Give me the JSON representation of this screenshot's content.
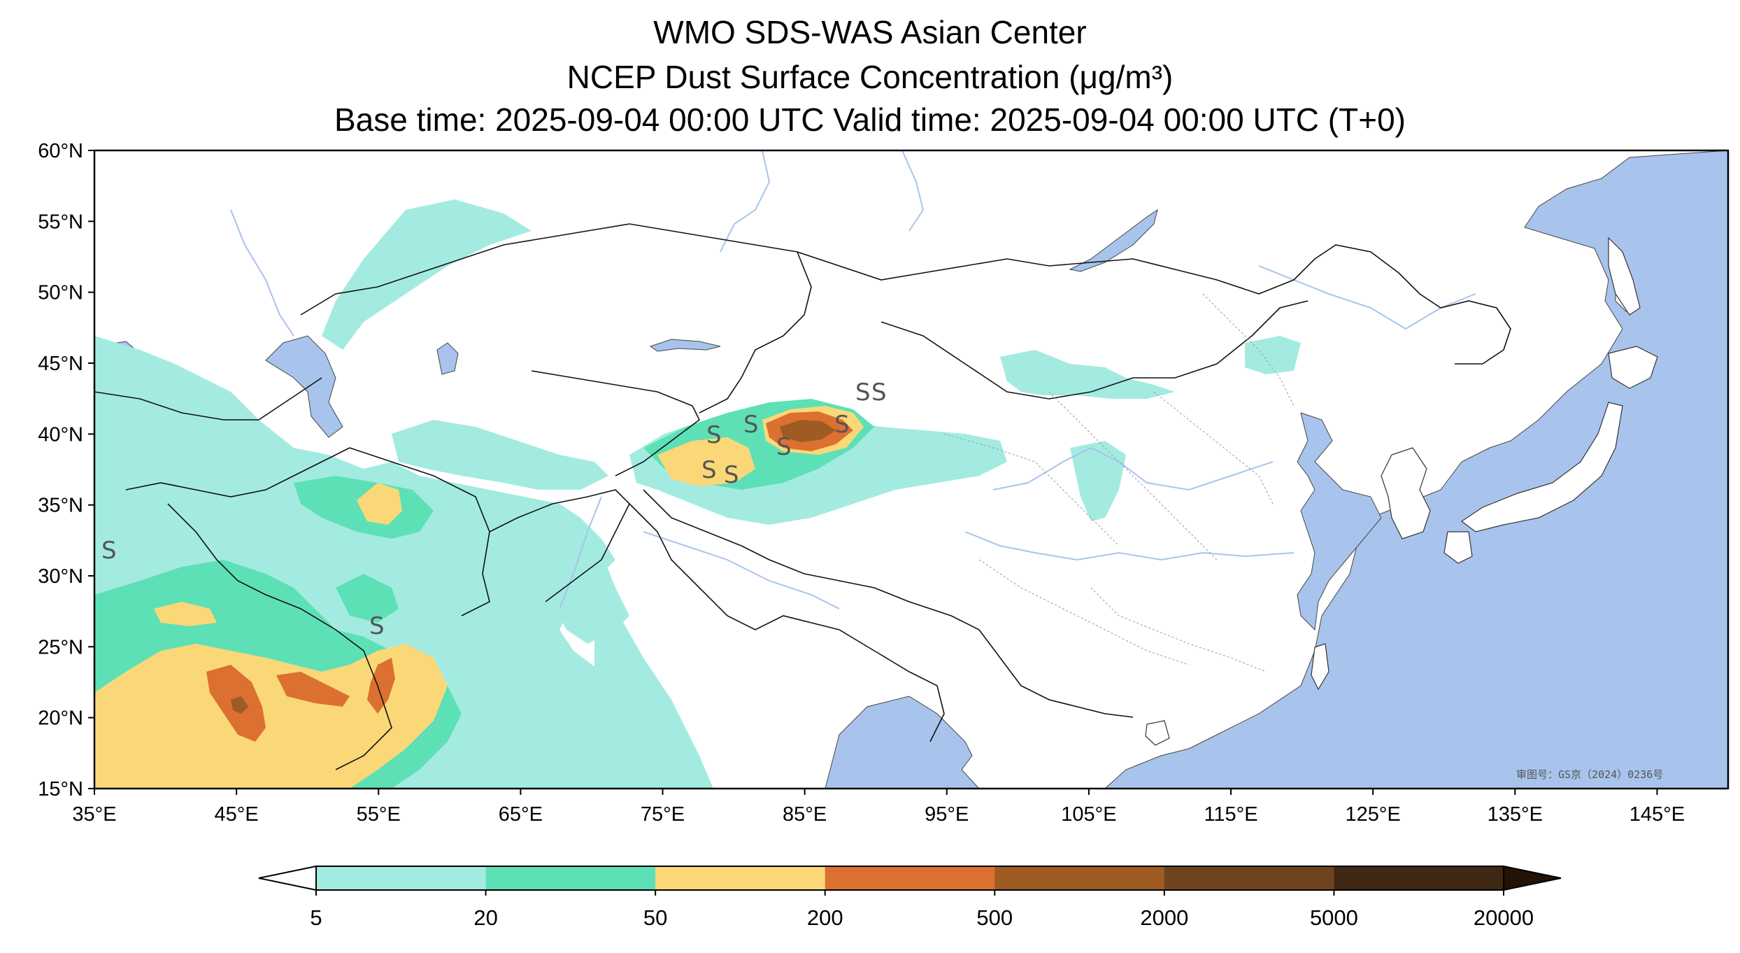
{
  "header": {
    "title": "WMO SDS-WAS Asian Center",
    "subtitle": "NCEP Dust Surface Concentration (μg/m³)",
    "time_line": "Base time: 2025-09-04 00:00 UTC Valid time: 2025-09-04 00:00 UTC (T+0)"
  },
  "map": {
    "lon_range": [
      35,
      150
    ],
    "lat_range": [
      15,
      60
    ],
    "lon_ticks": [
      "35°E",
      "45°E",
      "55°E",
      "65°E",
      "75°E",
      "85°E",
      "95°E",
      "105°E",
      "115°E",
      "125°E",
      "135°E",
      "145°E"
    ],
    "lat_ticks": [
      "60°N",
      "55°N",
      "50°N",
      "45°N",
      "40°N",
      "35°N",
      "30°N",
      "25°N",
      "20°N",
      "15°N"
    ],
    "credit": "审图号：GS京（2024）0236号",
    "dust_storm_symbol": "S",
    "ocean_color": "#a8c4ec",
    "river_color": "#a8c4ec"
  },
  "colorbar": {
    "levels": [
      "5",
      "20",
      "50",
      "200",
      "500",
      "2000",
      "5000",
      "20000"
    ],
    "colors": [
      "#a3ebe1",
      "#5ee0b6",
      "#fad878",
      "#dc7030",
      "#9e5b24",
      "#6e4420",
      "#3f2814"
    ],
    "extend": "both",
    "under_color": "#ffffff",
    "over_color": "#221208"
  }
}
